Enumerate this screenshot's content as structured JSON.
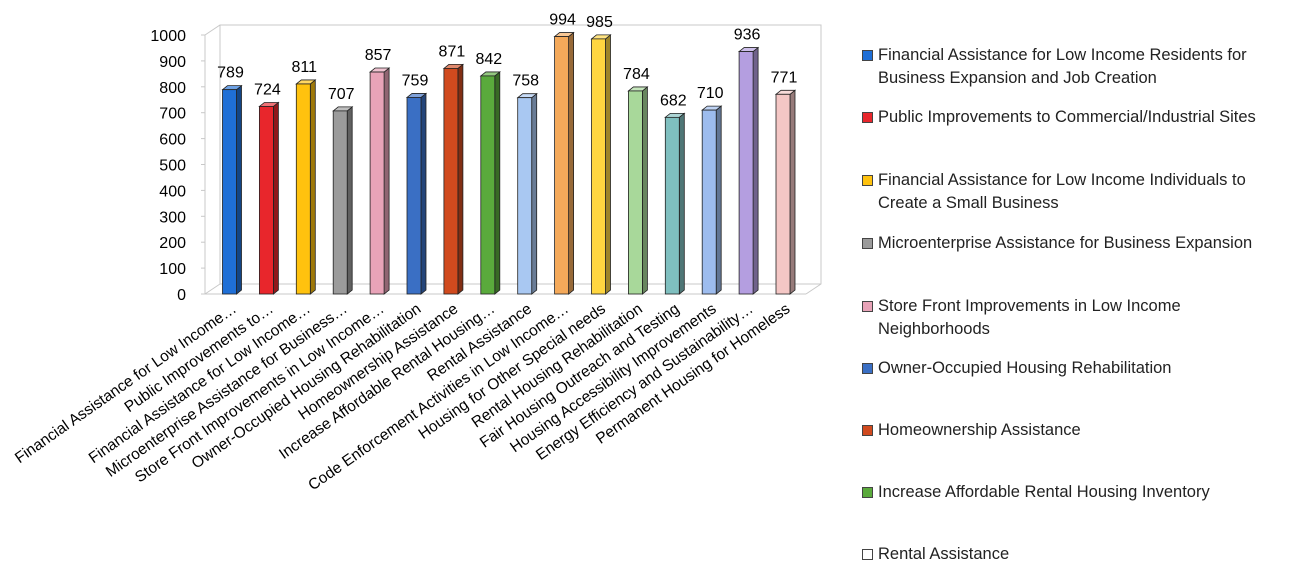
{
  "chart_data": {
    "type": "bar",
    "title": "",
    "xlabel": "",
    "ylabel": "",
    "ylim": [
      0,
      1000
    ],
    "yticks": [
      0,
      100,
      200,
      300,
      400,
      500,
      600,
      700,
      800,
      900,
      1000
    ],
    "categories": [
      "Financial Assistance for Low Income…",
      "Public Improvements to…",
      "Financial Assistance for Low Income…",
      "Microenterprise Assistance for Business…",
      "Store Front Improvements in Low Income…",
      "Owner-Occupied Housing Rehabilitation",
      "Homeownership Assistance",
      "Increase Affordable Rental Housing…",
      "Rental Assistance",
      "Code Enforcement Activities in Low Income…",
      "Housing for Other Special needs",
      "Rental Housing Rehabilitation",
      "Fair Housing Outreach and Testing",
      "Housing Accessibility Improvements",
      "Energy Efficiency and Sustainability…",
      "Permanent Housing for Homeless"
    ],
    "values": [
      789,
      724,
      811,
      707,
      857,
      759,
      871,
      842,
      758,
      994,
      985,
      784,
      682,
      710,
      936,
      771
    ],
    "value_labels": [
      "789",
      "724",
      "811",
      "707",
      "857",
      "759",
      "871",
      "842",
      "758",
      "994",
      "985",
      "784",
      "682",
      "710",
      "936",
      "771"
    ],
    "colors": [
      "#1f6fd6",
      "#e8262c",
      "#ffc20e",
      "#9b9b9b",
      "#e8a3b8",
      "#3a6fc4",
      "#d04a1e",
      "#5aaa3c",
      "#a9c8f2",
      "#f4a95a",
      "#ffd640",
      "#a8d89a",
      "#7fbfbf",
      "#9dbcee",
      "#b49ee0",
      "#f4c7c5"
    ],
    "legend": {
      "placement": "right",
      "entries": [
        {
          "label": "Financial Assistance for Low Income Residents for Business Expansion and Job Creation",
          "color": "#1f6fd6"
        },
        {
          "label": "Public Improvements to Commercial/Industrial Sites",
          "color": "#e8262c"
        },
        {
          "label": "Financial Assistance for Low Income Individuals to Create a Small Business",
          "color": "#ffc20e"
        },
        {
          "label": "Microenterprise Assistance for Business Expansion",
          "color": "#9b9b9b"
        },
        {
          "label": "Store Front Improvements in Low Income Neighborhoods",
          "color": "#e8a3b8"
        },
        {
          "label": "Owner-Occupied Housing Rehabilitation",
          "color": "#3a6fc4"
        },
        {
          "label": "Homeownership Assistance",
          "color": "#d04a1e"
        },
        {
          "label": "Increase Affordable Rental Housing Inventory",
          "color": "#5aaa3c"
        },
        {
          "label": "Rental Assistance",
          "color": "#ffffff"
        }
      ]
    },
    "grid": false,
    "style": "3d-column"
  }
}
